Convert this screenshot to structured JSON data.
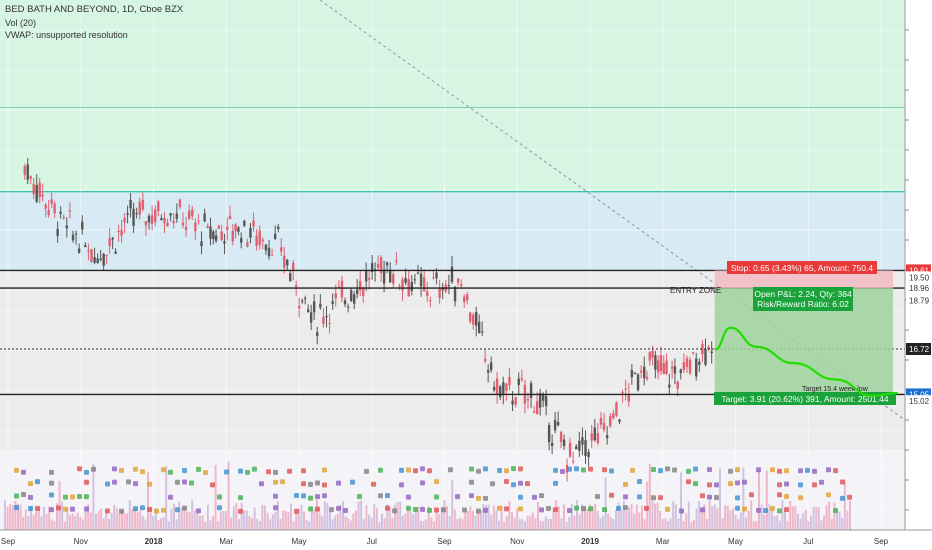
{
  "header": {
    "title": "BED BATH AND BEYOND, 1D, Cboe BZX",
    "volume_label": "Vol (20)",
    "vwap_label": "VWAP: unsupported resolution"
  },
  "colors": {
    "zone_green": "#d6f5e3",
    "zone_blue": "#d8ebf5",
    "zone_gray": "#ececec",
    "candle_up": "#555555",
    "candle_down": "#e06070",
    "stop_red": "#e83a3a",
    "target_green": "#19a33a",
    "projection": "#22dd00",
    "separator": "#00b3a0"
  },
  "chart_data": {
    "type": "candlestick",
    "symbol": "BED BATH AND BEYOND",
    "interval": "1D",
    "exchange": "Cboe BZX",
    "x_ticks": [
      "Sep",
      "Nov",
      "2018",
      "Mar",
      "May",
      "Jul",
      "Sep",
      "Nov",
      "2019",
      "Mar",
      "May",
      "Jul",
      "Sep"
    ],
    "price_series": [
      {
        "date": "2017-09",
        "price": 23.4
      },
      {
        "date": "2017-10",
        "price": 21.4
      },
      {
        "date": "2017-11",
        "price": 20.2
      },
      {
        "date": "2017-12",
        "price": 21.6
      },
      {
        "date": "2018-01",
        "price": 21.8
      },
      {
        "date": "2018-02",
        "price": 21.0
      },
      {
        "date": "2018-03",
        "price": 21.2
      },
      {
        "date": "2018-04",
        "price": 20.5
      },
      {
        "date": "2018-05",
        "price": 17.8
      },
      {
        "date": "2018-06",
        "price": 18.9
      },
      {
        "date": "2018-07",
        "price": 19.8
      },
      {
        "date": "2018-08",
        "price": 18.9
      },
      {
        "date": "2018-09",
        "price": 19.2
      },
      {
        "date": "2018-10",
        "price": 15.2
      },
      {
        "date": "2018-11",
        "price": 15.0
      },
      {
        "date": "2018-12",
        "price": 12.7
      },
      {
        "date": "2019-01",
        "price": 13.8
      },
      {
        "date": "2019-02",
        "price": 16.2
      },
      {
        "date": "2019-03",
        "price": 15.7
      },
      {
        "date": "2019-04",
        "price": 17.2
      }
    ],
    "price_labels": [
      {
        "value": 19.61,
        "text": "19.61",
        "style": "red"
      },
      {
        "value": 19.5,
        "text": "19.50",
        "style": "plain"
      },
      {
        "value": 18.96,
        "text": "18.96",
        "style": "plain"
      },
      {
        "value": 18.79,
        "text": "18.79",
        "style": "plain"
      },
      {
        "value": 16.72,
        "text": "16.72",
        "style": "dark"
      },
      {
        "value": 15.05,
        "text": "15.05",
        "style": "blue"
      },
      {
        "value": 15.02,
        "text": "15.02",
        "style": "plain"
      }
    ],
    "horizontal_levels": [
      19.61,
      18.96,
      16.72,
      15.05
    ],
    "trade_box": {
      "entry": 18.96,
      "stop": 19.61,
      "target": 15.05,
      "stop_label": "Stop: 0.65 (3.43%) 65, Amount: 750.4",
      "pnl_label": "Open P&L: 2.24, Qty: 384",
      "rr_label": "Risk/Reward Ratio: 6.02",
      "target_label": "Target: 3.91 (20.62%) 391, Amount: 2501.44"
    },
    "annotations": {
      "entry_zone": "ENTRY ZONE",
      "target_note": "Target 15.4 week low"
    },
    "projection_path": [
      {
        "date": "2019-04-15",
        "price": 16.7
      },
      {
        "date": "2019-04-28",
        "price": 17.5
      },
      {
        "date": "2019-05-20",
        "price": 16.8
      },
      {
        "date": "2019-06-20",
        "price": 16.2
      },
      {
        "date": "2019-07-25",
        "price": 15.6
      },
      {
        "date": "2019-08-25",
        "price": 15.0
      },
      {
        "date": "2019-09-15",
        "price": 15.1
      }
    ],
    "grid": true
  }
}
